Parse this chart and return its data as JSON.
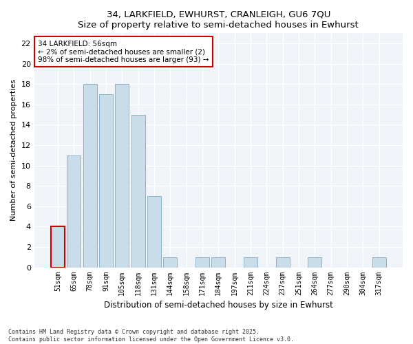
{
  "title1": "34, LARKFIELD, EWHURST, CRANLEIGH, GU6 7QU",
  "title2": "Size of property relative to semi-detached houses in Ewhurst",
  "xlabel": "Distribution of semi-detached houses by size in Ewhurst",
  "ylabel": "Number of semi-detached properties",
  "categories": [
    "51sqm",
    "65sqm",
    "78sqm",
    "91sqm",
    "105sqm",
    "118sqm",
    "131sqm",
    "144sqm",
    "158sqm",
    "171sqm",
    "184sqm",
    "197sqm",
    "211sqm",
    "224sqm",
    "237sqm",
    "251sqm",
    "264sqm",
    "277sqm",
    "290sqm",
    "304sqm",
    "317sqm"
  ],
  "values": [
    4,
    11,
    18,
    17,
    18,
    15,
    7,
    1,
    0,
    1,
    1,
    0,
    1,
    0,
    1,
    0,
    1,
    0,
    0,
    0,
    1
  ],
  "bar_color": "#c9dcea",
  "bar_edgecolor": "#8ab4cc",
  "highlight_index": 0,
  "highlight_edgecolor": "#cc0000",
  "annotation_text": "34 LARKFIELD: 56sqm\n← 2% of semi-detached houses are smaller (2)\n98% of semi-detached houses are larger (93) →",
  "annotation_box_edgecolor": "#cc0000",
  "ylim": [
    0,
    23
  ],
  "yticks": [
    0,
    2,
    4,
    6,
    8,
    10,
    12,
    14,
    16,
    18,
    20,
    22
  ],
  "footnote": "Contains HM Land Registry data © Crown copyright and database right 2025.\nContains public sector information licensed under the Open Government Licence v3.0.",
  "fig_background": "#ffffff",
  "plot_background": "#f0f4f8"
}
